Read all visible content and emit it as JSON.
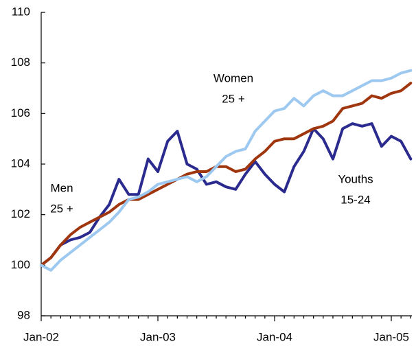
{
  "chart_data": {
    "type": "line",
    "categories": [
      "Jan-02",
      null,
      null,
      null,
      null,
      null,
      null,
      null,
      null,
      null,
      null,
      null,
      "Jan-03",
      null,
      null,
      null,
      null,
      null,
      null,
      null,
      null,
      null,
      null,
      null,
      "Jan-04",
      null,
      null,
      null,
      null,
      null,
      null,
      null,
      null,
      null,
      null,
      null,
      "Jan-05",
      null,
      null
    ],
    "series": [
      {
        "name": "Youths 15-24",
        "color": "#2b2b8f",
        "values": [
          100.0,
          100.3,
          100.8,
          101.0,
          101.1,
          101.3,
          101.9,
          102.4,
          103.4,
          102.8,
          102.8,
          104.2,
          103.7,
          104.9,
          105.3,
          104.0,
          103.8,
          103.2,
          103.3,
          103.1,
          103.0,
          103.6,
          104.1,
          103.6,
          103.2,
          102.9,
          103.9,
          104.5,
          105.4,
          105.0,
          104.2,
          105.4,
          105.6,
          105.5,
          105.6,
          104.7,
          105.1,
          104.9,
          104.2
        ]
      },
      {
        "name": "Men 25 +",
        "color": "#a0360e",
        "values": [
          100.0,
          100.3,
          100.8,
          101.2,
          101.5,
          101.7,
          101.9,
          102.1,
          102.4,
          102.6,
          102.6,
          102.8,
          103.0,
          103.2,
          103.4,
          103.6,
          103.7,
          103.7,
          103.9,
          103.9,
          103.7,
          103.8,
          104.2,
          104.5,
          104.9,
          105.0,
          105.0,
          105.2,
          105.4,
          105.5,
          105.7,
          106.2,
          106.3,
          106.4,
          106.7,
          106.6,
          106.8,
          106.9,
          107.2
        ]
      },
      {
        "name": "Women 25 +",
        "color": "#9dc8f0",
        "values": [
          100.0,
          99.8,
          100.2,
          100.5,
          100.8,
          101.1,
          101.4,
          101.7,
          102.1,
          102.6,
          102.7,
          102.9,
          103.2,
          103.3,
          103.4,
          103.5,
          103.3,
          103.5,
          103.9,
          104.3,
          104.5,
          104.6,
          105.3,
          105.7,
          106.1,
          106.2,
          106.6,
          106.3,
          106.7,
          106.9,
          106.7,
          106.7,
          106.9,
          107.1,
          107.3,
          107.3,
          107.4,
          107.6,
          107.7
        ]
      }
    ],
    "annotations": [
      {
        "lines": [
          "Women",
          "25 +"
        ]
      },
      {
        "lines": [
          "Men",
          "25 +"
        ]
      },
      {
        "lines": [
          "Youths",
          "15-24"
        ]
      }
    ],
    "ylim": [
      98,
      110
    ],
    "yticks": [
      98,
      100,
      102,
      104,
      106,
      108,
      110
    ],
    "grid": false
  }
}
